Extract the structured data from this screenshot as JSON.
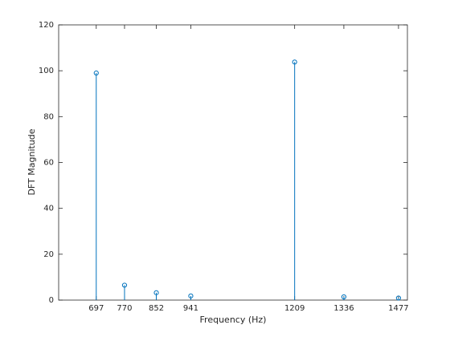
{
  "chart_data": {
    "type": "stem",
    "xlabel": "Frequency (Hz)",
    "ylabel": "DFT Magnitude",
    "x": [
      697,
      770,
      852,
      941,
      1209,
      1336,
      1477
    ],
    "values": [
      99,
      6.5,
      3.2,
      1.8,
      103.8,
      1.4,
      0.9
    ],
    "color": "#0072bd",
    "xlim": [
      600,
      1500
    ],
    "xticks": [
      697,
      770,
      852,
      941,
      1209,
      1336,
      1477
    ],
    "ylim": [
      0,
      120
    ],
    "yticks": [
      0,
      20,
      40,
      60,
      80,
      100,
      120
    ],
    "box": true
  }
}
